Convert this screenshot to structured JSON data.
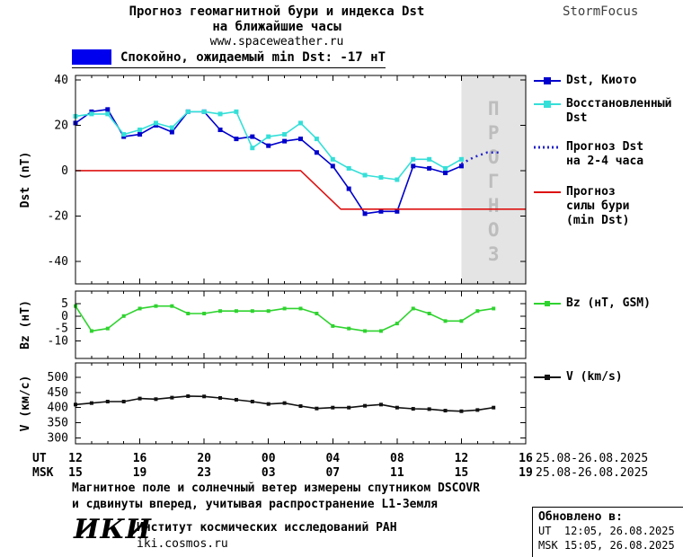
{
  "header": {
    "title_line1": "Прогноз геомагнитной бури и индекса Dst",
    "title_line2": "на ближайшие часы",
    "website": "www.spaceweather.ru",
    "brand": "StormFocus",
    "status_label": "Спокойно, ожидаемый min Dst: -17 нТ",
    "status_color": "#0000ee"
  },
  "legend": {
    "dst_kyoto": "Dst, Киото",
    "restored_line1": "Восстановленный",
    "restored_line2": "Dst",
    "forecast_line1": "Прогноз Dst",
    "forecast_line2": "на 2-4 часа",
    "storm_line1": "Прогноз",
    "storm_line2": "силы бури",
    "storm_line3": "(min Dst)",
    "bz": "Bz (нТ, GSM)",
    "v": "V (km/s)"
  },
  "xaxis": {
    "ut_label": "UT",
    "msk_label": "MSK",
    "tick_hours": [
      0,
      4,
      8,
      12,
      16,
      20,
      24,
      28
    ],
    "ut_ticks": [
      "12",
      "16",
      "20",
      "00",
      "04",
      "08",
      "12",
      "16"
    ],
    "msk_ticks": [
      "15",
      "19",
      "23",
      "03",
      "07",
      "11",
      "15",
      "19"
    ],
    "date_range_ut": "25.08-26.08.2025",
    "date_range_msk": "25.08-26.08.2025"
  },
  "chart_data": [
    {
      "type": "line",
      "ylabel": "Dst (nT)",
      "ylim": [
        -50,
        42
      ],
      "yticks": [
        40,
        20,
        0,
        -20,
        -40
      ],
      "xlim": [
        0,
        28
      ],
      "x_unit": "hours since 12:00 UT 25.08.2025",
      "forecast_region": [
        24,
        28
      ],
      "forecast_watermark": "ПРОГНОЗ",
      "series": [
        {
          "id": "dst-kyoto",
          "name": "Dst, Киото",
          "color": "#0000cc",
          "line": "solid",
          "marker": true,
          "marker_size": 5,
          "x": [
            0,
            1,
            2,
            3,
            4,
            5,
            6,
            7,
            8,
            9,
            10,
            11,
            12,
            13,
            14,
            15,
            16,
            17,
            18,
            19,
            20,
            21,
            22,
            23,
            24
          ],
          "y": [
            21,
            26,
            27,
            15,
            16,
            20,
            17,
            26,
            26,
            18,
            14,
            15,
            11,
            13,
            14,
            8,
            2,
            -8,
            -19,
            -18,
            -18,
            2,
            1,
            -1,
            2
          ]
        },
        {
          "id": "dst-restored",
          "name": "Восстановленный Dst",
          "color": "#35dfd8",
          "line": "solid",
          "marker": true,
          "marker_size": 5,
          "x": [
            0,
            1,
            2,
            3,
            4,
            5,
            6,
            7,
            8,
            9,
            10,
            11,
            12,
            13,
            14,
            15,
            16,
            17,
            18,
            19,
            20,
            21,
            22,
            23,
            24
          ],
          "y": [
            24,
            25,
            25,
            16,
            18,
            21,
            19,
            26,
            26,
            25,
            26,
            10,
            15,
            16,
            21,
            14,
            5,
            1,
            -2,
            -3,
            -4,
            5,
            5,
            1,
            5
          ]
        },
        {
          "id": "dst-forecast",
          "name": "Прогноз Dst на 2-4 часа",
          "color": "#2222cc",
          "line": "dotted",
          "marker": false,
          "x": [
            24,
            24.8,
            25.6,
            26.4
          ],
          "y": [
            3,
            6,
            8,
            8
          ]
        },
        {
          "id": "storm-forecast",
          "name": "Прогноз силы бури (min Dst)",
          "color": "#dd1111",
          "line": "solid",
          "marker": false,
          "x": [
            0,
            14,
            16.5,
            28
          ],
          "y": [
            0,
            0,
            -17,
            -17
          ]
        }
      ]
    },
    {
      "type": "line",
      "ylabel": "Bz (нТ)",
      "ylim": [
        -17,
        10
      ],
      "yticks": [
        5,
        0,
        -5,
        -10
      ],
      "xlim": [
        0,
        28
      ],
      "series": [
        {
          "id": "bz",
          "name": "Bz (нТ, GSM)",
          "color": "#2fd32f",
          "line": "solid",
          "marker": true,
          "marker_size": 4,
          "x": [
            0,
            1,
            2,
            3,
            4,
            5,
            6,
            7,
            8,
            9,
            10,
            11,
            12,
            13,
            14,
            15,
            16,
            17,
            18,
            19,
            20,
            21,
            22,
            23,
            24,
            25,
            26
          ],
          "y": [
            4,
            -6,
            -5,
            0,
            3,
            4,
            4,
            1,
            1,
            2,
            2,
            2,
            2,
            3,
            3,
            1,
            -4,
            -5,
            -6,
            -6,
            -3,
            3,
            1,
            -2,
            -2,
            2,
            3
          ]
        }
      ]
    },
    {
      "type": "line",
      "ylabel": "V (км/с)",
      "ylim": [
        280,
        548
      ],
      "yticks": [
        500,
        450,
        400,
        350,
        300
      ],
      "xlim": [
        0,
        28
      ],
      "series": [
        {
          "id": "v",
          "name": "V (km/s)",
          "color": "#111111",
          "line": "solid",
          "marker": true,
          "marker_size": 4,
          "x": [
            0,
            1,
            2,
            3,
            4,
            5,
            6,
            7,
            8,
            9,
            10,
            11,
            12,
            13,
            14,
            15,
            16,
            17,
            18,
            19,
            20,
            21,
            22,
            23,
            24,
            25,
            26
          ],
          "y": [
            410,
            415,
            420,
            420,
            430,
            428,
            433,
            438,
            437,
            432,
            426,
            420,
            412,
            415,
            405,
            397,
            400,
            400,
            406,
            410,
            400,
            396,
            395,
            390,
            388,
            392,
            400
          ]
        }
      ]
    }
  ],
  "footer": {
    "note_line1": "Магнитное поле и солнечный ветер измерены спутником DSCOVR",
    "note_line2": "и сдвинуты вперед, учитывая распространение L1-Земля",
    "org_logo": "ИКИ",
    "org_name": "Институт космических исследований РАН",
    "org_site": "iki.cosmos.ru",
    "updated_label": "Обновлено в:",
    "updated_ut": "UT  12:05, 26.08.2025",
    "updated_msk": "MSK 15:05, 26.08.2025"
  }
}
